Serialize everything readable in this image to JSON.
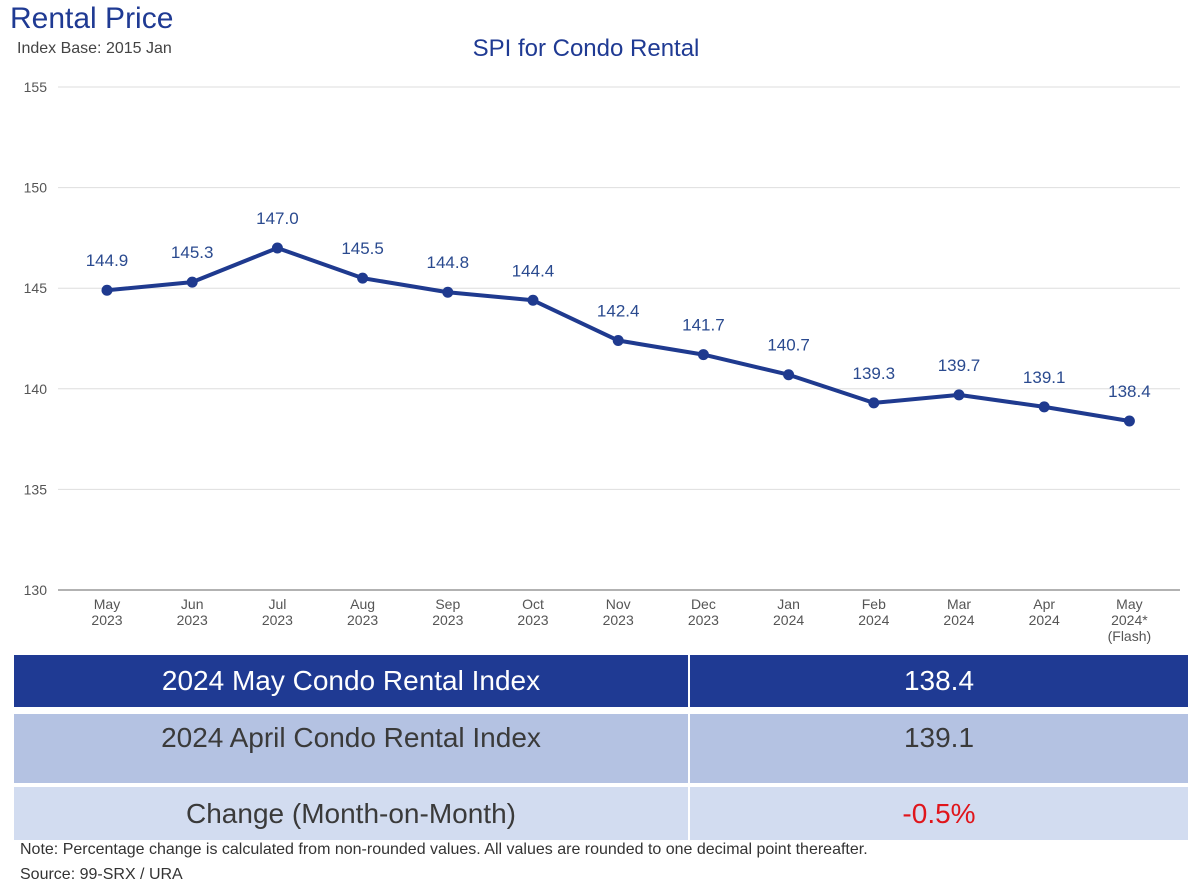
{
  "header": {
    "title": "Rental Price",
    "index_base": "Index Base: 2015 Jan"
  },
  "chart_data": {
    "type": "line",
    "title": "SPI for Condo Rental",
    "xlabel": "",
    "ylabel": "",
    "ylim": [
      130,
      155
    ],
    "yticks": [
      130,
      135,
      140,
      145,
      150,
      155
    ],
    "grid": true,
    "categories": [
      [
        "May",
        "2023"
      ],
      [
        "Jun",
        "2023"
      ],
      [
        "Jul",
        "2023"
      ],
      [
        "Aug",
        "2023"
      ],
      [
        "Sep",
        "2023"
      ],
      [
        "Oct",
        "2023"
      ],
      [
        "Nov",
        "2023"
      ],
      [
        "Dec",
        "2023"
      ],
      [
        "Jan",
        "2024"
      ],
      [
        "Feb",
        "2024"
      ],
      [
        "Mar",
        "2024"
      ],
      [
        "Apr",
        "2024"
      ],
      [
        "May",
        "2024*",
        "(Flash)"
      ]
    ],
    "series": [
      {
        "name": "SPI for Condo Rental",
        "color": "#1f3a8f",
        "values": [
          144.9,
          145.3,
          147.0,
          145.5,
          144.8,
          144.4,
          142.4,
          141.7,
          140.7,
          139.3,
          139.7,
          139.1,
          138.4
        ],
        "labels": [
          "144.9",
          "145.3",
          "147.0",
          "145.5",
          "144.8",
          "144.4",
          "142.4",
          "141.7",
          "140.7",
          "139.3",
          "139.7",
          "139.1",
          "138.4"
        ]
      }
    ]
  },
  "summary_table": {
    "rows": [
      {
        "label": "2024 May Condo Rental Index",
        "value": "138.4"
      },
      {
        "label": "2024 April Condo Rental Index",
        "value": "139.1"
      },
      {
        "label": "Change (Month-on-Month)",
        "value": "-0.5%"
      }
    ]
  },
  "footer": {
    "note": "Note: Percentage change is calculated from non-rounded values.  All values are rounded to one decimal point thereafter.",
    "source": "Source: 99-SRX / URA"
  },
  "colors": {
    "brand": "#1f3a93",
    "negative": "#e0151b"
  }
}
